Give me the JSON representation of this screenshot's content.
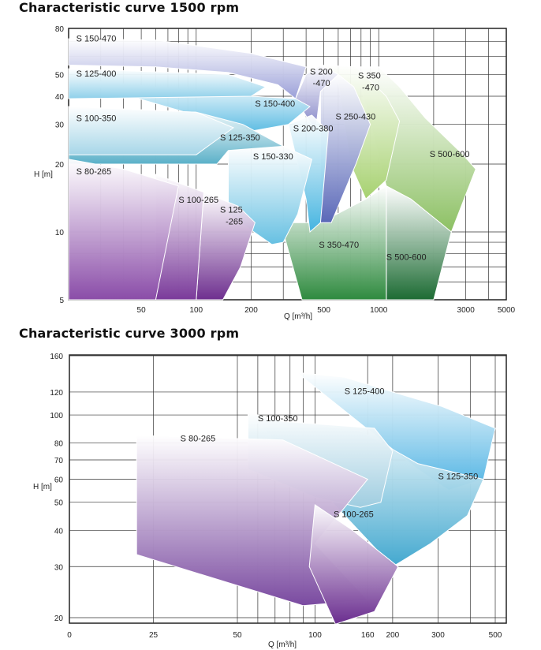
{
  "chart_data": [
    {
      "type": "area",
      "title": "Characteristic curve 1500 rpm",
      "xlabel": "Q [m³/h]",
      "ylabel": "H [m]",
      "x_scale": "log",
      "y_scale": "log",
      "xlim": [
        20,
        5000
      ],
      "ylim": [
        5,
        80
      ],
      "x_ticks": [
        {
          "v": 50,
          "label": "50"
        },
        {
          "v": 100,
          "label": "100"
        },
        {
          "v": 200,
          "label": "200"
        },
        {
          "v": 500,
          "label": "500"
        },
        {
          "v": 1000,
          "label": "1000"
        },
        {
          "v": 3000,
          "label": "3000"
        },
        {
          "v": 5000,
          "label": "5000"
        }
      ],
      "y_ticks": [
        {
          "v": 5,
          "label": "5"
        },
        {
          "v": 10,
          "label": "10"
        },
        {
          "v": 20,
          "label": "20"
        },
        {
          "v": 30,
          "label": "30"
        },
        {
          "v": 40,
          "label": "40"
        },
        {
          "v": 50,
          "label": "50"
        },
        {
          "v": 80,
          "label": "80"
        }
      ],
      "grid": true,
      "series": [
        {
          "name": "S 500-600",
          "color": "#8cc063",
          "polygon": [
            [
              750,
              54
            ],
            [
              1000,
              54
            ],
            [
              1300,
              44
            ],
            [
              1800,
              32
            ],
            [
              2900,
              22
            ],
            [
              3400,
              19
            ],
            [
              2500,
              10
            ],
            [
              1500,
              14
            ],
            [
              1100,
              16
            ]
          ]
        },
        {
          "name": "S 500-600",
          "color": "#1c6b33",
          "polygon": [
            [
              1100,
              16
            ],
            [
              1500,
              14
            ],
            [
              2500,
              10
            ],
            [
              2000,
              5
            ],
            [
              1100,
              5
            ]
          ]
        },
        {
          "name": "S 350-470",
          "color": "#a6d16f",
          "polygon": [
            [
              480,
              55
            ],
            [
              750,
              54
            ],
            [
              1100,
              40
            ],
            [
              1300,
              31
            ],
            [
              1100,
              17
            ],
            [
              850,
              14
            ],
            [
              700,
              20
            ],
            [
              600,
              46
            ]
          ]
        },
        {
          "name": "S 350-470",
          "color": "#2e8a3e",
          "polygon": [
            [
              290,
              11
            ],
            [
              480,
              11
            ],
            [
              850,
              14
            ],
            [
              1100,
              16
            ],
            [
              1100,
              5
            ],
            [
              380,
              5
            ]
          ]
        },
        {
          "name": "S 250-430",
          "color": "#5a68b8",
          "polygon": [
            [
              480,
              42
            ],
            [
              600,
              50
            ],
            [
              730,
              44
            ],
            [
              900,
              30
            ],
            [
              750,
              20
            ],
            [
              550,
              11
            ],
            [
              480,
              11
            ]
          ]
        },
        {
          "name": "S 200-470",
          "color": "#7d7ec4",
          "polygon": [
            [
              400,
              50
            ],
            [
              480,
              55
            ],
            [
              600,
              50
            ],
            [
              480,
              42
            ],
            [
              450,
              28
            ],
            [
              350,
              39
            ]
          ]
        },
        {
          "name": "S 200-380",
          "color": "#44b4e0",
          "polygon": [
            [
              320,
              30
            ],
            [
              430,
              33
            ],
            [
              530,
              28
            ],
            [
              480,
              11
            ],
            [
              420,
              10
            ],
            [
              400,
              14
            ]
          ]
        },
        {
          "name": "S 150-470",
          "color": "#9a9fd8",
          "polygon": [
            [
              20,
              72
            ],
            [
              60,
              71
            ],
            [
              200,
              62
            ],
            [
              400,
              54
            ],
            [
              350,
              39
            ],
            [
              280,
              45
            ],
            [
              150,
              51
            ],
            [
              60,
              54
            ],
            [
              20,
              55
            ]
          ]
        },
        {
          "name": "S 150-400",
          "color": "#5fbde3",
          "polygon": [
            [
              20,
              48
            ],
            [
              200,
              40
            ],
            [
              350,
              39
            ],
            [
              420,
              36
            ],
            [
              320,
              30
            ],
            [
              200,
              28
            ]
          ]
        },
        {
          "name": "S 150-330",
          "color": "#66c0e2",
          "polygon": [
            [
              150,
              23
            ],
            [
              300,
              24
            ],
            [
              430,
              21
            ],
            [
              360,
              12
            ],
            [
              300,
              9
            ],
            [
              260,
              8.8
            ],
            [
              150,
              12
            ]
          ]
        },
        {
          "name": "S 125-400",
          "color": "#8fd0ea",
          "polygon": [
            [
              20,
              53
            ],
            [
              150,
              50
            ],
            [
              240,
              44
            ],
            [
              200,
              40
            ],
            [
              20,
              39
            ]
          ]
        },
        {
          "name": "S 125-350",
          "color": "#5ab0c8",
          "polygon": [
            [
              20,
              36
            ],
            [
              100,
              34
            ],
            [
              180,
              30
            ],
            [
              300,
              24
            ],
            [
              150,
              23
            ],
            [
              130,
              20
            ],
            [
              20,
              20
            ]
          ]
        },
        {
          "name": "S 100-350",
          "color": "#a7d6e8",
          "polygon": [
            [
              20,
              36
            ],
            [
              100,
              34
            ],
            [
              160,
              29
            ],
            [
              100,
              22
            ],
            [
              20,
              22
            ]
          ]
        },
        {
          "name": "S 125-265",
          "color": "#6e2f8f",
          "polygon": [
            [
              110,
              15
            ],
            [
              170,
              13
            ],
            [
              210,
              11
            ],
            [
              175,
              7
            ],
            [
              140,
              5
            ],
            [
              100,
              5
            ]
          ]
        },
        {
          "name": "S 100-265",
          "color": "#7a3a9a",
          "polygon": [
            [
              60,
              18
            ],
            [
              110,
              15
            ],
            [
              100,
              5
            ],
            [
              60,
              5
            ]
          ]
        },
        {
          "name": "S 80-265",
          "color": "#8a4ca8",
          "polygon": [
            [
              20,
              21
            ],
            [
              40,
              19
            ],
            [
              80,
              16
            ],
            [
              60,
              5
            ],
            [
              20,
              5
            ]
          ]
        }
      ]
    },
    {
      "type": "area",
      "title": "Characteristic curve 3000 rpm",
      "xlabel": "Q [m³/h]",
      "ylabel": "H [m]",
      "x_scale": "log-like",
      "y_scale": "log",
      "xlim": [
        0,
        500
      ],
      "ylim": [
        20,
        160
      ],
      "x_ticks": [
        {
          "v": 0,
          "label": "0"
        },
        {
          "v": 25,
          "label": "25"
        },
        {
          "v": 50,
          "label": "50"
        },
        {
          "v": 100,
          "label": "100"
        },
        {
          "v": 160,
          "label": "160"
        },
        {
          "v": 200,
          "label": "200"
        },
        {
          "v": 300,
          "label": "300"
        },
        {
          "v": 500,
          "label": "500"
        }
      ],
      "y_ticks": [
        {
          "v": 20,
          "label": "20"
        },
        {
          "v": 30,
          "label": "30"
        },
        {
          "v": 40,
          "label": "40"
        },
        {
          "v": 50,
          "label": "50"
        },
        {
          "v": 60,
          "label": "60"
        },
        {
          "v": 70,
          "label": "70"
        },
        {
          "v": 80,
          "label": "80"
        },
        {
          "v": 100,
          "label": "100"
        },
        {
          "v": 120,
          "label": "120"
        },
        {
          "v": 160,
          "label": "160"
        }
      ],
      "grid": true,
      "series": [
        {
          "name": "S 125-400",
          "color": "#4fb3e3",
          "polygon": [
            [
              85,
              140
            ],
            [
              130,
              135
            ],
            [
              200,
              120
            ],
            [
              310,
              107
            ],
            [
              500,
              90
            ],
            [
              450,
              60
            ],
            [
              330,
              55
            ],
            [
              250,
              65
            ]
          ]
        },
        {
          "name": "S 125-350",
          "color": "#42a8cf",
          "polygon": [
            [
              55,
              102
            ],
            [
              75,
              95
            ],
            [
              150,
              88
            ],
            [
              250,
              68
            ],
            [
              450,
              60
            ],
            [
              390,
              45
            ],
            [
              280,
              36
            ],
            [
              200,
              30
            ]
          ]
        },
        {
          "name": "S 100-350",
          "color": "#9fcde0",
          "polygon": [
            [
              55,
              102
            ],
            [
              75,
              95
            ],
            [
              170,
              90
            ],
            [
              200,
              75
            ],
            [
              180,
              50
            ],
            [
              150,
              48
            ],
            [
              100,
              52
            ],
            [
              55,
              65
            ]
          ]
        },
        {
          "name": "S 80-265",
          "color": "#7a4aa0",
          "polygon": [
            [
              20,
              85
            ],
            [
              75,
              82
            ],
            [
              160,
              60
            ],
            [
              100,
              36
            ],
            [
              160,
              23
            ],
            [
              90,
              22
            ],
            [
              20,
              33
            ]
          ]
        },
        {
          "name": "S 100-265",
          "color": "#6a2d8f",
          "polygon": [
            [
              100,
              49
            ],
            [
              140,
              40
            ],
            [
              210,
              30
            ],
            [
              170,
              21
            ],
            [
              120,
              19
            ],
            [
              95,
              30
            ]
          ]
        }
      ]
    }
  ],
  "labels1500": [
    {
      "text": "S 150-470",
      "q": 22,
      "h": 70
    },
    {
      "text": "S 125-400",
      "q": 22,
      "h": 49
    },
    {
      "text": "S 100-350",
      "q": 22,
      "h": 31
    },
    {
      "text": "S 80-265",
      "q": 22,
      "h": 18
    },
    {
      "text": "S 150-400",
      "q": 210,
      "h": 36
    },
    {
      "text": "S 125-350",
      "q": 135,
      "h": 25.5
    },
    {
      "text": "S 150-330",
      "q": 205,
      "h": 21
    },
    {
      "text": "S 100-265",
      "q": 80,
      "h": 13.5
    },
    {
      "text": "S 125",
      "q": 135,
      "h": 12.2
    },
    {
      "text": "-265",
      "q": 145,
      "h": 10.8
    },
    {
      "text": "S 200",
      "q": 420,
      "h": 50
    },
    {
      "text": "-470",
      "q": 435,
      "h": 44.5
    },
    {
      "text": "S 350",
      "q": 770,
      "h": 48
    },
    {
      "text": "-470",
      "q": 810,
      "h": 42.5
    },
    {
      "text": "S 200-380",
      "q": 340,
      "h": 28
    },
    {
      "text": "S 250-430",
      "q": 580,
      "h": 31.5
    },
    {
      "text": "S 500-600",
      "q": 1900,
      "h": 21.5
    },
    {
      "text": "S 350-470",
      "q": 470,
      "h": 8.5
    },
    {
      "text": "S 500-600",
      "q": 1100,
      "h": 7.5
    }
  ],
  "labels3000": [
    {
      "text": "S 125-400",
      "q": 130,
      "h": 118
    },
    {
      "text": "S 100-350",
      "q": 60,
      "h": 95
    },
    {
      "text": "S 80-265",
      "q": 33,
      "h": 81
    },
    {
      "text": "S 125-350",
      "q": 300,
      "h": 60
    },
    {
      "text": "S 100-265",
      "q": 118,
      "h": 44.5
    }
  ]
}
